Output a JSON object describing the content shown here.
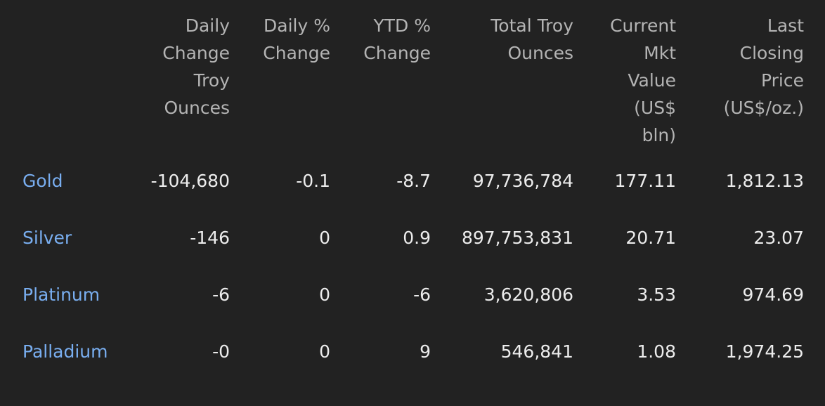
{
  "table": {
    "headers": [
      "",
      "Daily Change Troy Ounces",
      "Daily % Change",
      "YTD % Change",
      "Total Troy Ounces",
      "Current Mkt Value (US$ bln)",
      "Last Closing Price (US$/oz.)"
    ],
    "rows": [
      {
        "metal": "Gold",
        "daily_change_oz": "-104,680",
        "daily_pct": "-0.1",
        "ytd_pct": "-8.7",
        "total_oz": "97,736,784",
        "mkt_value": "177.11",
        "last_price": "1,812.13"
      },
      {
        "metal": "Silver",
        "daily_change_oz": "-146",
        "daily_pct": "0",
        "ytd_pct": "0.9",
        "total_oz": "897,753,831",
        "mkt_value": "20.71",
        "last_price": "23.07"
      },
      {
        "metal": "Platinum",
        "daily_change_oz": "-6",
        "daily_pct": "0",
        "ytd_pct": "-6",
        "total_oz": "3,620,806",
        "mkt_value": "3.53",
        "last_price": "974.69"
      },
      {
        "metal": "Palladium",
        "daily_change_oz": "-0",
        "daily_pct": "0",
        "ytd_pct": "9",
        "total_oz": "546,841",
        "mkt_value": "1.08",
        "last_price": "1,974.25"
      }
    ]
  },
  "colors": {
    "background": "#222222",
    "header_text": "#b4b4b4",
    "value_text": "#ececec",
    "metal_link": "#79aef0"
  }
}
